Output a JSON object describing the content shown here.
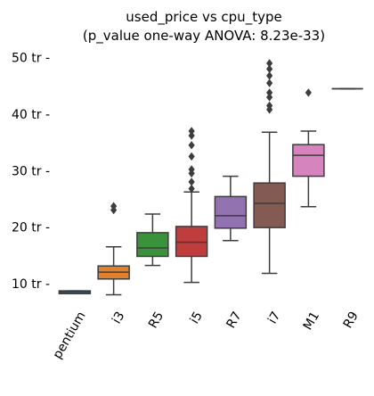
{
  "chart_data": {
    "type": "box",
    "title_line1": "used_price vs cpu_type",
    "title_line2": "(p_value one-way ANOVA: 8.23e-33)",
    "xlabel": "",
    "ylabel": "",
    "ylim": [
      6.5,
      52
    ],
    "y_ticks": [
      {
        "value": 10,
        "label": "10 tr -"
      },
      {
        "value": 20,
        "label": "20 tr -"
      },
      {
        "value": 30,
        "label": "30 tr -"
      },
      {
        "value": 40,
        "label": "40 tr -"
      },
      {
        "value": 50,
        "label": "50 tr -"
      }
    ],
    "categories": [
      "pentium",
      "i3",
      "R5",
      "i5",
      "R7",
      "i7",
      "M1",
      "R9"
    ],
    "boxes": [
      {
        "category": "pentium",
        "color": "#3274a1",
        "whisker_low": 8.2,
        "q1": 8.2,
        "median": 8.5,
        "q3": 8.7,
        "whisker_high": 8.7,
        "outliers": []
      },
      {
        "category": "i3",
        "color": "#e1812c",
        "whisker_low": 8.0,
        "q1": 10.8,
        "median": 12.0,
        "q3": 13.1,
        "whisker_high": 16.5,
        "outliers": [
          23.0,
          23.7
        ]
      },
      {
        "category": "R5",
        "color": "#3a923a",
        "whisker_low": 13.2,
        "q1": 14.8,
        "median": 16.3,
        "q3": 19.0,
        "whisker_high": 22.3,
        "outliers": []
      },
      {
        "category": "i5",
        "color": "#c03d3e",
        "whisker_low": 10.2,
        "q1": 14.8,
        "median": 17.3,
        "q3": 20.1,
        "whisker_high": 26.2,
        "outliers": [
          26.8,
          28.0,
          29.5,
          30.2,
          32.5,
          34.5,
          36.2,
          37.0
        ]
      },
      {
        "category": "R7",
        "color": "#9372b2",
        "whisker_low": 17.6,
        "q1": 19.8,
        "median": 22.0,
        "q3": 25.4,
        "whisker_high": 29.0,
        "outliers": []
      },
      {
        "category": "i7",
        "color": "#845b53",
        "whisker_low": 11.8,
        "q1": 19.9,
        "median": 24.2,
        "q3": 27.8,
        "whisker_high": 36.8,
        "outliers": [
          40.8,
          41.5,
          43.0,
          43.8,
          45.5,
          46.8,
          48.0,
          49.0
        ]
      },
      {
        "category": "M1",
        "color": "#d684bd",
        "whisker_low": 23.6,
        "q1": 29.0,
        "median": 32.7,
        "q3": 34.6,
        "whisker_high": 37.0,
        "outliers": [
          43.8
        ]
      },
      {
        "category": "R9",
        "color": "#7f7f7f",
        "whisker_low": 44.5,
        "q1": 44.5,
        "median": 44.5,
        "q3": 44.5,
        "whisker_high": 44.5,
        "outliers": []
      }
    ],
    "grid": false,
    "legend": "none"
  }
}
